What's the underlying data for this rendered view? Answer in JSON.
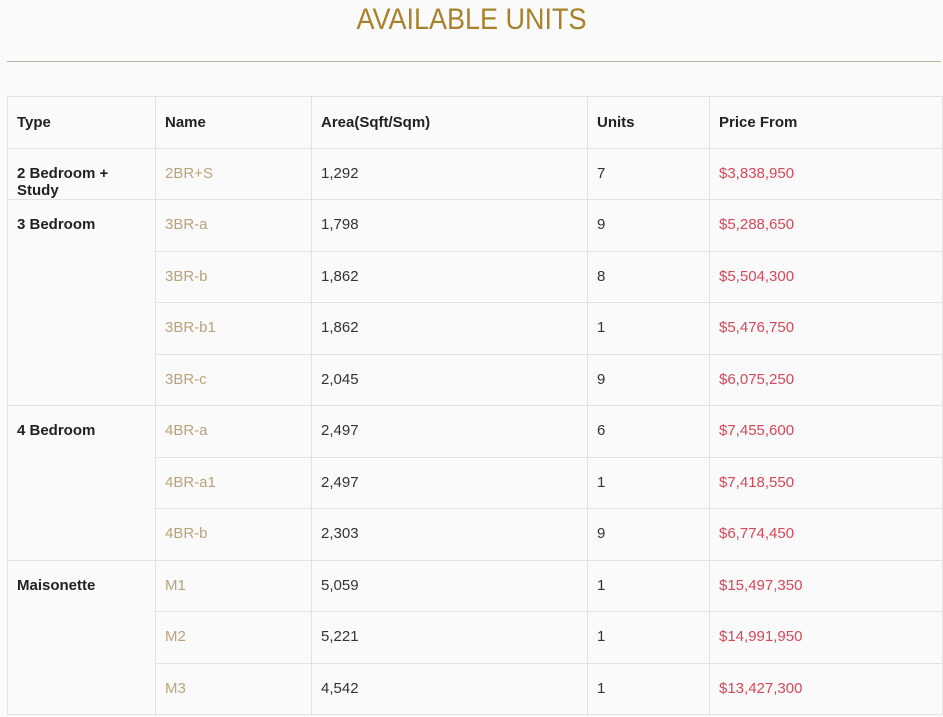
{
  "title": "AVAILABLE UNITS",
  "colors": {
    "title": "#a8822a",
    "name": "#b8a37a",
    "price": "#d6485a"
  },
  "table": {
    "headers": [
      "Type",
      "Name",
      "Area(Sqft/Sqm)",
      "Units",
      "Price From"
    ],
    "groups": [
      {
        "type": "2 Bedroom + Study",
        "rows": [
          {
            "name": "2BR+S",
            "area": "1,292",
            "units": "7",
            "price": "$3,838,950"
          }
        ]
      },
      {
        "type": "3 Bedroom",
        "rows": [
          {
            "name": "3BR-a",
            "area": "1,798",
            "units": "9",
            "price": "$5,288,650"
          },
          {
            "name": "3BR-b",
            "area": "1,862",
            "units": "8",
            "price": "$5,504,300"
          },
          {
            "name": "3BR-b1",
            "area": "1,862",
            "units": "1",
            "price": "$5,476,750"
          },
          {
            "name": "3BR-c",
            "area": "2,045",
            "units": "9",
            "price": "$6,075,250"
          }
        ]
      },
      {
        "type": "4 Bedroom",
        "rows": [
          {
            "name": "4BR-a",
            "area": "2,497",
            "units": "6",
            "price": "$7,455,600"
          },
          {
            "name": "4BR-a1",
            "area": "2,497",
            "units": "1",
            "price": "$7,418,550"
          },
          {
            "name": "4BR-b",
            "area": "2,303",
            "units": "9",
            "price": "$6,774,450"
          }
        ]
      },
      {
        "type": "Maisonette",
        "rows": [
          {
            "name": "M1",
            "area": "5,059",
            "units": "1",
            "price": "$15,497,350"
          },
          {
            "name": "M2",
            "area": "5,221",
            "units": "1",
            "price": "$14,991,950"
          },
          {
            "name": "M3",
            "area": "4,542",
            "units": "1",
            "price": "$13,427,300"
          }
        ]
      }
    ]
  }
}
